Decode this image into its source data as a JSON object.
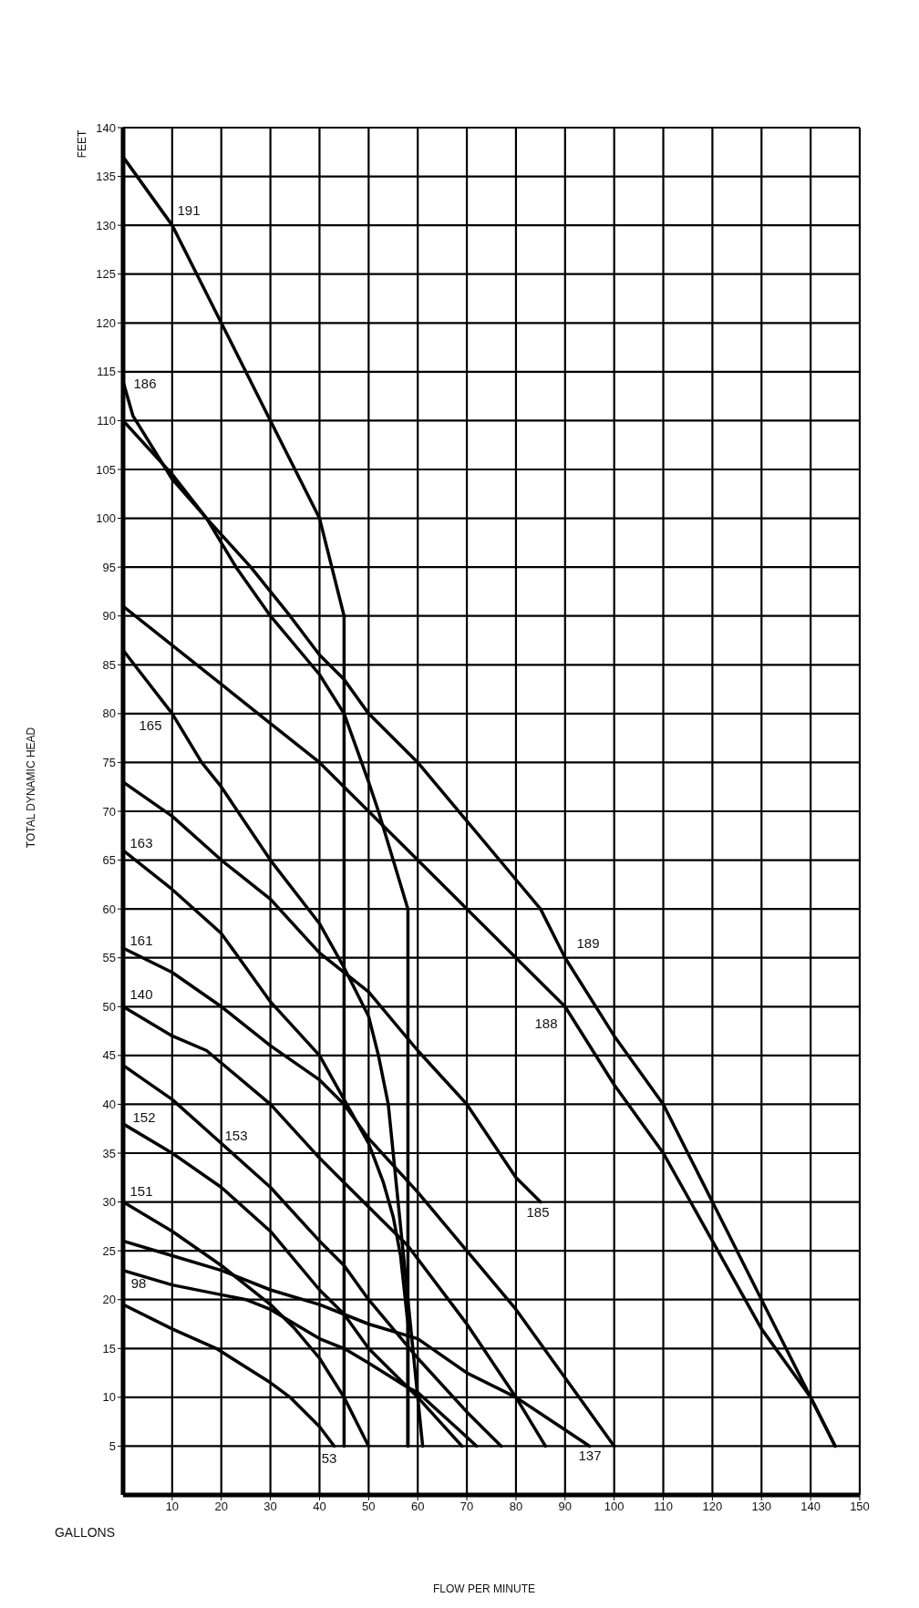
{
  "chart_data": {
    "type": "line",
    "annotations": [
      "FEET",
      "GALLONS",
      "TOTAL DYNAMIC HEAD",
      "FLOW PER MINUTE",
      "191",
      "186",
      "165",
      "163",
      "161",
      "140",
      "152",
      "153",
      "151",
      "98",
      "53",
      "185",
      "137",
      "189",
      "188"
    ],
    "xlim": [
      0,
      150
    ],
    "ylim": [
      0,
      140
    ],
    "xticks": [
      10,
      20,
      30,
      40,
      50,
      60,
      70,
      80,
      90,
      100,
      110,
      120,
      130,
      140,
      150
    ],
    "yticks": [
      5,
      10,
      15,
      20,
      25,
      30,
      35,
      40,
      45,
      50,
      55,
      60,
      65,
      70,
      75,
      80,
      85,
      90,
      95,
      100,
      105,
      110,
      115,
      120,
      125,
      130,
      135,
      140
    ],
    "grid": true,
    "series": [
      {
        "color": "#000000",
        "x": [
          0,
          10,
          20,
          30,
          40,
          45,
          45
        ],
        "values": [
          137,
          130,
          120,
          110,
          100,
          90,
          5
        ]
      },
      {
        "color": "#000000",
        "x": [
          0,
          2,
          10,
          17,
          23,
          30,
          40,
          45,
          50,
          52,
          55,
          58,
          58
        ],
        "values": [
          114,
          110.5,
          104,
          100,
          95,
          90,
          84,
          80,
          73,
          70,
          65,
          60,
          5
        ]
      },
      {
        "color": "#000000",
        "x": [
          0,
          10,
          17,
          26,
          34,
          40,
          45,
          50,
          60,
          70,
          80,
          85,
          90,
          100,
          110,
          120,
          130,
          140,
          145
        ],
        "values": [
          110,
          104.5,
          100,
          95,
          90,
          86,
          83.5,
          80,
          75,
          69,
          63,
          60,
          55,
          47,
          40,
          30,
          20,
          10,
          5
        ]
      },
      {
        "color": "#000000",
        "x": [
          0,
          10,
          20,
          30,
          40,
          45,
          50,
          60,
          70,
          80,
          90,
          100,
          110,
          120,
          130,
          140,
          145
        ],
        "values": [
          91,
          87,
          83,
          79,
          75,
          72.5,
          70,
          65,
          60,
          55,
          50,
          42,
          35,
          26,
          17,
          10,
          5
        ]
      },
      {
        "color": "#000000",
        "x": [
          0,
          10,
          16,
          20,
          30,
          40,
          45,
          50,
          52,
          54,
          55,
          56,
          57,
          58,
          60,
          61
        ],
        "values": [
          86.5,
          80,
          75,
          72.5,
          65,
          58.5,
          54,
          49,
          45,
          40,
          35,
          30,
          25,
          20,
          10,
          5
        ]
      },
      {
        "color": "#000000",
        "x": [
          0,
          10,
          20,
          30,
          40,
          50,
          60,
          70,
          80,
          85
        ],
        "values": [
          73,
          69.5,
          65,
          61,
          55.5,
          51.5,
          45.5,
          40,
          32.5,
          30
        ]
      },
      {
        "color": "#000000",
        "x": [
          0,
          10,
          20,
          30,
          40,
          45,
          50,
          53,
          55,
          56.5,
          58,
          58
        ],
        "values": [
          66,
          62,
          57.5,
          50.5,
          45,
          40.5,
          36,
          32,
          28.5,
          24.5,
          17.5,
          5
        ]
      },
      {
        "color": "#000000",
        "x": [
          0,
          10,
          20,
          30,
          40,
          45,
          50,
          60,
          70,
          80,
          90,
          100
        ],
        "values": [
          56,
          53.5,
          50,
          46,
          42.5,
          40,
          36.5,
          31,
          25,
          19,
          12,
          5
        ]
      },
      {
        "color": "#000000",
        "x": [
          0,
          10,
          17,
          30,
          40,
          45,
          50,
          58,
          70,
          80,
          86
        ],
        "values": [
          50,
          47,
          45.5,
          40,
          34.5,
          32,
          29.5,
          25.5,
          17.5,
          10,
          5
        ]
      },
      {
        "color": "#000000",
        "x": [
          0,
          10,
          20,
          30,
          40,
          45,
          50,
          60,
          70,
          77
        ],
        "values": [
          44,
          40.5,
          36,
          31.5,
          26,
          23.5,
          20,
          14,
          8.5,
          5
        ]
      },
      {
        "color": "#000000",
        "x": [
          0,
          10,
          20,
          30,
          40,
          45,
          50,
          60,
          69
        ],
        "values": [
          38,
          35,
          31.5,
          27,
          21,
          18.5,
          15,
          10,
          5
        ]
      },
      {
        "color": "#000000",
        "x": [
          0,
          10,
          20,
          30,
          35,
          40,
          45,
          50
        ],
        "values": [
          30,
          27,
          23.5,
          19.5,
          17,
          14,
          10,
          5
        ]
      },
      {
        "color": "#000000",
        "x": [
          0,
          10,
          20,
          30,
          40,
          50,
          60,
          70,
          80,
          86,
          95
        ],
        "values": [
          26,
          24.5,
          23,
          21,
          19.5,
          17.5,
          16,
          12.5,
          10,
          8,
          5
        ]
      },
      {
        "color": "#000000",
        "x": [
          0,
          10,
          20,
          25,
          30,
          40,
          45,
          50,
          58,
          60,
          72
        ],
        "values": [
          23,
          21.5,
          20.5,
          20,
          19,
          16,
          15,
          13.5,
          11,
          10.5,
          5
        ]
      },
      {
        "color": "#000000",
        "x": [
          0,
          10,
          19,
          30,
          34,
          40,
          43
        ],
        "values": [
          19.5,
          17,
          15,
          11.5,
          10,
          7,
          5
        ]
      }
    ]
  }
}
